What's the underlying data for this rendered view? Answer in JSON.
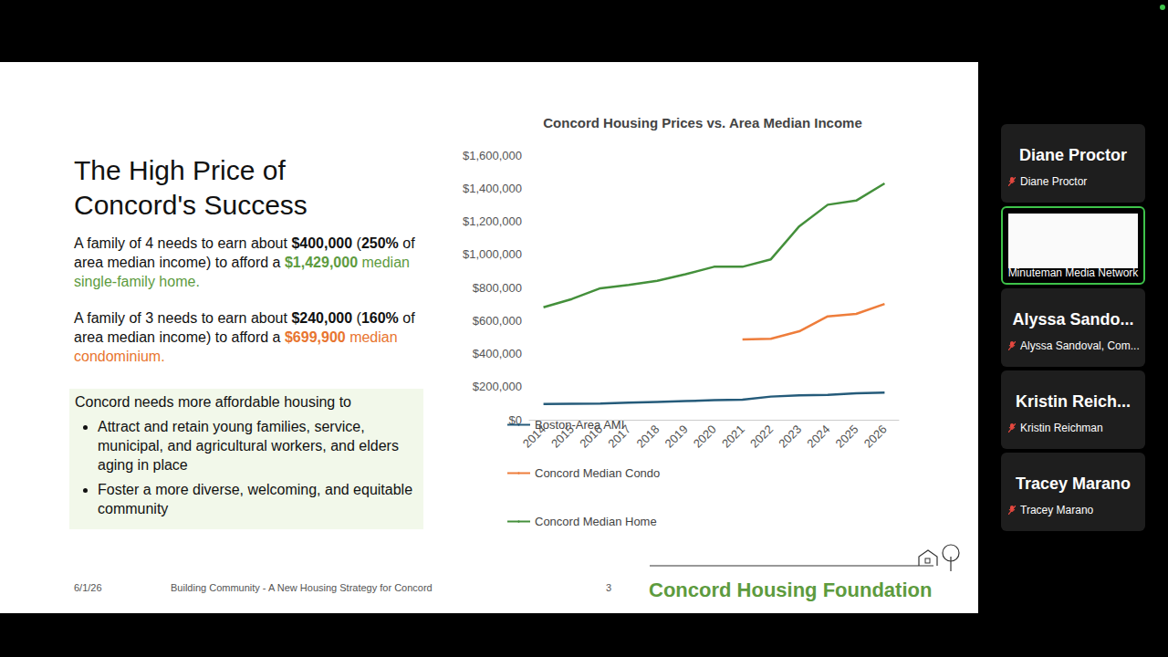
{
  "chart_data": {
    "type": "line",
    "title": "Concord Housing Prices vs. Area Median Income",
    "categories": [
      "2014",
      "2015",
      "2016",
      "2017",
      "2018",
      "2019",
      "2020",
      "2021",
      "2022",
      "2023",
      "2024",
      "2025",
      "2026"
    ],
    "series": [
      {
        "name": "Boston-Area AMI",
        "color": "#255b7a",
        "values": [
          95000,
          97000,
          98000,
          103000,
          108000,
          113000,
          118000,
          121000,
          140000,
          148000,
          150000,
          160000,
          164000
        ]
      },
      {
        "name": "Concord Median Condo",
        "color": "#ee7d3b",
        "values": [
          null,
          null,
          null,
          null,
          null,
          null,
          null,
          485000,
          490000,
          535000,
          625000,
          640000,
          699900
        ]
      },
      {
        "name": "Concord Median Home",
        "color": "#44903b",
        "values": [
          680000,
          730000,
          795000,
          815000,
          840000,
          880000,
          925000,
          925000,
          970000,
          1170000,
          1300000,
          1325000,
          1429000
        ]
      }
    ],
    "ylim": [
      0,
      1600000
    ],
    "yticks": [
      {
        "value": 0,
        "label": "$0"
      },
      {
        "value": 200000,
        "label": "$200,000"
      },
      {
        "value": 400000,
        "label": "$400,000"
      },
      {
        "value": 600000,
        "label": "$600,000"
      },
      {
        "value": 800000,
        "label": "$800,000"
      },
      {
        "value": 1000000,
        "label": "$1,000,000"
      },
      {
        "value": 1200000,
        "label": "$1,200,000"
      },
      {
        "value": 1400000,
        "label": "$1,400,000"
      },
      {
        "value": 1600000,
        "label": "$1,600,000"
      }
    ],
    "grid": false,
    "legend": "bottom"
  },
  "slide": {
    "title": "The High Price of Concord's Success",
    "paragraphs": [
      [
        {
          "text": "A family of 4 needs to earn about "
        },
        {
          "text": "$400,000",
          "bold": true
        },
        {
          "text": " ("
        },
        {
          "text": "250%",
          "bold": true
        },
        {
          "text": " of area median income) to afford a "
        },
        {
          "text": "$1,429,000",
          "bold": true,
          "color": "#5d9b3e"
        },
        {
          "text": " median single-family home.",
          "color": "#5d9b3e"
        }
      ],
      [
        {
          "text": "A family of 3 needs to earn about "
        },
        {
          "text": "$240,000",
          "bold": true
        },
        {
          "text": " ("
        },
        {
          "text": "160%",
          "bold": true
        },
        {
          "text": " of area median income) to afford a "
        },
        {
          "text": "$699,900",
          "bold": true,
          "color": "#e8752f"
        },
        {
          "text": " median condominium.",
          "color": "#e8752f"
        }
      ]
    ],
    "box": {
      "heading": "Concord needs more affordable housing to",
      "bullets": [
        "Attract and retain young families, service, municipal, and agricultural workers, and elders aging in place",
        "Foster a more diverse, welcoming, and equitable community"
      ]
    },
    "footer": {
      "date": "6/1/26",
      "title": "Building Community - A New Housing Strategy for Concord",
      "page": "3",
      "brand": "Concord Housing Foundation"
    }
  },
  "participants": [
    {
      "name": "Diane Proctor",
      "label": "Diane Proctor"
    },
    {
      "label": "Minuteman Media Network",
      "thumbnail": true
    },
    {
      "name": "Alyssa Sando...",
      "label": "Alyssa Sandoval, Com..."
    },
    {
      "name": "Kristin Reich...",
      "label": "Kristin Reichman"
    },
    {
      "name": "Tracey Marano",
      "label": "Tracey Marano"
    }
  ]
}
